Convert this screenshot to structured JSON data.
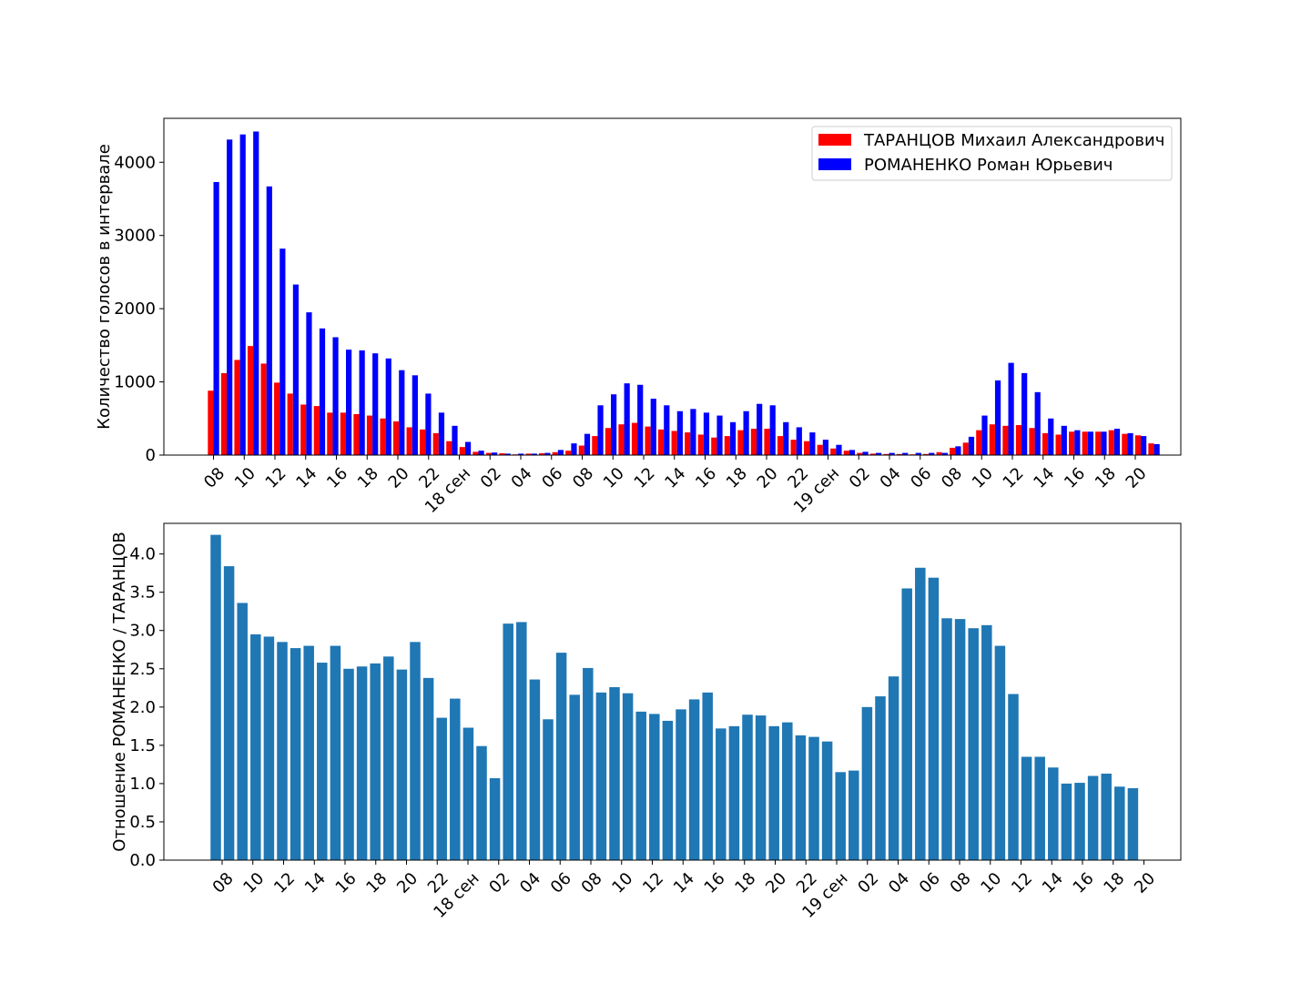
{
  "chart_data": [
    {
      "type": "bar",
      "ylabel": "Количество голосов в интервале",
      "ylim": [
        0,
        4600
      ],
      "yticks": [
        0,
        1000,
        2000,
        3000,
        4000
      ],
      "legend_position": "top-right",
      "tick_labels": [
        "08",
        "10",
        "12",
        "14",
        "16",
        "18",
        "20",
        "22",
        "18 сен",
        "02",
        "04",
        "06",
        "08",
        "10",
        "12",
        "14",
        "16",
        "18",
        "20",
        "22",
        "19 сен",
        "02",
        "04",
        "06",
        "08",
        "10",
        "12",
        "14",
        "16",
        "18",
        "20"
      ],
      "series": [
        {
          "name": "ТАРАНЦОВ Михаил Александрович",
          "color": "#ff0000",
          "values": [
            880,
            1120,
            1300,
            1490,
            1250,
            990,
            840,
            690,
            670,
            580,
            580,
            560,
            540,
            500,
            460,
            380,
            350,
            300,
            190,
            110,
            45,
            30,
            25,
            10,
            20,
            25,
            40,
            60,
            130,
            260,
            370,
            420,
            440,
            390,
            350,
            330,
            310,
            280,
            240,
            260,
            340,
            360,
            360,
            260,
            210,
            190,
            140,
            90,
            60,
            30,
            20,
            15,
            15,
            10,
            15,
            40,
            100,
            170,
            340,
            420,
            400,
            410,
            370,
            300,
            280,
            320,
            320,
            320,
            340,
            290,
            270,
            160
          ]
        },
        {
          "name": "РОМАНЕНКО Роман Юрьевич",
          "color": "#0000ff",
          "values": [
            3730,
            4310,
            4380,
            4420,
            3670,
            2820,
            2330,
            1950,
            1730,
            1610,
            1440,
            1430,
            1390,
            1320,
            1160,
            1090,
            840,
            580,
            400,
            180,
            60,
            35,
            20,
            20,
            20,
            30,
            70,
            160,
            290,
            680,
            830,
            980,
            960,
            770,
            680,
            600,
            630,
            580,
            540,
            450,
            600,
            700,
            680,
            450,
            380,
            310,
            210,
            140,
            70,
            45,
            30,
            30,
            30,
            30,
            30,
            30,
            120,
            250,
            540,
            1020,
            1260,
            1120,
            860,
            500,
            400,
            340,
            320,
            320,
            360,
            300,
            260,
            150
          ]
        }
      ]
    },
    {
      "type": "bar",
      "ylabel": "Отношение РОМАНЕНКО / ТАРАНЦОВ",
      "ylim": [
        0,
        4.4
      ],
      "yticks": [
        "0.0",
        "0.5",
        "1.0",
        "1.5",
        "2.0",
        "2.5",
        "3.0",
        "3.5",
        "4.0"
      ],
      "tick_labels": [
        "08",
        "10",
        "12",
        "14",
        "16",
        "18",
        "20",
        "22",
        "18 сен",
        "02",
        "04",
        "06",
        "08",
        "10",
        "12",
        "14",
        "16",
        "18",
        "20",
        "22",
        "19 сен",
        "02",
        "04",
        "06",
        "08",
        "10",
        "12",
        "14",
        "16",
        "18",
        "20"
      ],
      "series": [
        {
          "color": "#1f77b4",
          "values": [
            4.25,
            3.84,
            3.36,
            2.95,
            2.92,
            2.85,
            2.77,
            2.8,
            2.58,
            2.8,
            2.5,
            2.53,
            2.57,
            2.66,
            2.49,
            2.85,
            2.38,
            1.86,
            2.11,
            1.73,
            1.49,
            1.07,
            3.09,
            3.11,
            2.36,
            1.84,
            2.71,
            2.16,
            2.51,
            2.19,
            2.26,
            2.18,
            1.94,
            1.91,
            1.82,
            1.97,
            2.1,
            2.19,
            1.72,
            1.75,
            1.9,
            1.89,
            1.75,
            1.8,
            1.63,
            1.61,
            1.55,
            1.15,
            1.17,
            2.0,
            2.14,
            2.4,
            3.55,
            3.82,
            3.69,
            3.16,
            3.15,
            3.03,
            3.07,
            2.8,
            2.17,
            1.35,
            1.35,
            1.21,
            1.0,
            1.01,
            1.1,
            1.13,
            0.96,
            0.94
          ]
        }
      ]
    }
  ]
}
